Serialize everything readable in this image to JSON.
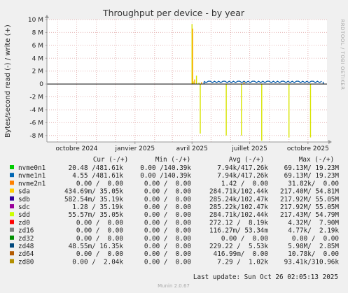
{
  "chart_data": {
    "type": "line",
    "title": "Throughput per device - by year",
    "ylabel": "Bytes/second read (-) / write (+)",
    "side_label": "RRDTOOL / TOBI OETIKER",
    "ylim": [
      -9000000,
      10000000
    ],
    "y_ticks": [
      {
        "value": 10000000,
        "label": "10 M"
      },
      {
        "value": 8000000,
        "label": "8 M"
      },
      {
        "value": 6000000,
        "label": "6 M"
      },
      {
        "value": 4000000,
        "label": "4 M"
      },
      {
        "value": 2000000,
        "label": "2 M"
      },
      {
        "value": 0,
        "label": "0"
      },
      {
        "value": -2000000,
        "label": "-2 M"
      },
      {
        "value": -4000000,
        "label": "-4 M"
      },
      {
        "value": -6000000,
        "label": "-6 M"
      },
      {
        "value": -8000000,
        "label": "-8 M"
      }
    ],
    "xlim": [
      "2024-08-15",
      "2025-10-31"
    ],
    "x_ticks": [
      {
        "value": "2024-10-01",
        "label": "octobre 2024"
      },
      {
        "value": "2025-01-01",
        "label": "janvier 2025"
      },
      {
        "value": "2025-04-01",
        "label": "avril 2025"
      },
      {
        "value": "2025-07-01",
        "label": "juillet 2025"
      },
      {
        "value": "2025-10-01",
        "label": "octobre 2025"
      }
    ],
    "series": [
      {
        "name": "sdd",
        "color": "#d7e400",
        "points": [
          [
            "2025-04-01",
            9300000
          ],
          [
            "2025-04-03",
            400000
          ],
          [
            "2025-04-08",
            1300000
          ],
          [
            "2025-04-12",
            200000
          ],
          [
            "2025-04-14",
            -7700000
          ],
          [
            "2025-05-25",
            -8000000
          ],
          [
            "2025-06-18",
            -8000000
          ],
          [
            "2025-07-20",
            -8800000
          ],
          [
            "2025-09-01",
            -8300000
          ],
          [
            "2025-10-05",
            -8300000
          ]
        ]
      },
      {
        "name": "sda",
        "color": "#ffa500",
        "points": [
          [
            "2025-04-02",
            8600000
          ],
          [
            "2025-04-05",
            700000
          ],
          [
            "2025-04-16",
            300000
          ],
          [
            "2025-06-22",
            500000
          ]
        ]
      },
      {
        "name": "sdb",
        "color": "#0057a8",
        "points": [
          [
            "2025-04-20",
            350000
          ],
          [
            "2025-10-25",
            350000
          ]
        ]
      }
    ]
  },
  "legend": {
    "headers": {
      "cur": "Cur (-/+)",
      "min": "Min (-/+)",
      "avg": "Avg (-/+)",
      "max": "Max (-/+)"
    },
    "rows": [
      {
        "name": "nvme0n1",
        "color": "#00cc00",
        "cur": "20.48 /481.61k",
        "min": "0.00 /140.39k",
        "avg": "7.94k/417.26k",
        "max": "69.13M/ 19.23M"
      },
      {
        "name": "nvme1n1",
        "color": "#0066b3",
        "cur": "4.55 /481.61k",
        "min": "0.00 /140.39k",
        "avg": "7.94k/417.26k",
        "max": "69.13M/ 19.23M"
      },
      {
        "name": "nvme2n1",
        "color": "#ff8000",
        "cur": "0.00 /  0.00",
        "min": "0.00 /  0.00",
        "avg": "1.42 /  0.00",
        "max": "31.82k/  0.00"
      },
      {
        "name": "sda",
        "color": "#ffcc00",
        "cur": "434.69m/ 35.05k",
        "min": "0.00 /  0.00",
        "avg": "284.71k/102.44k",
        "max": "217.40M/ 54.81M"
      },
      {
        "name": "sdb",
        "color": "#330099",
        "cur": "582.54m/ 35.19k",
        "min": "0.00 /  0.00",
        "avg": "285.24k/102.47k",
        "max": "217.92M/ 55.05M"
      },
      {
        "name": "sdc",
        "color": "#990099",
        "cur": "1.28 / 35.19k",
        "min": "0.00 /  0.00",
        "avg": "285.22k/102.47k",
        "max": "217.92M/ 55.05M"
      },
      {
        "name": "sdd",
        "color": "#ccff00",
        "cur": "55.57m/ 35.05k",
        "min": "0.00 /  0.00",
        "avg": "284.71k/102.44k",
        "max": "217.43M/ 54.79M"
      },
      {
        "name": "zd0",
        "color": "#ff0000",
        "cur": "0.00 /  0.00",
        "min": "0.00 /  0.00",
        "avg": "272.12 /  8.19k",
        "max": "4.32M/  7.90M"
      },
      {
        "name": "zd16",
        "color": "#808080",
        "cur": "0.00 /  0.00",
        "min": "0.00 /  0.00",
        "avg": "116.27m/ 53.34m",
        "max": "4.77k/  2.19k"
      },
      {
        "name": "zd32",
        "color": "#008f00",
        "cur": "0.00 /  0.00",
        "min": "0.00 /  0.00",
        "avg": "0.00 /  0.00",
        "max": "0.00 /  0.00"
      },
      {
        "name": "zd48",
        "color": "#00487d",
        "cur": "48.55m/ 16.35k",
        "min": "0.00 /  0.00",
        "avg": "229.22 /  5.53k",
        "max": "5.98M/  2.85M"
      },
      {
        "name": "zd64",
        "color": "#b35a00",
        "cur": "0.00 /  0.00",
        "min": "0.00 /  0.00",
        "avg": "416.99m/  0.00",
        "max": "10.78k/  0.00"
      },
      {
        "name": "zd80",
        "color": "#b38f00",
        "cur": "0.00 /  2.04k",
        "min": "0.00 /  0.00",
        "avg": "7.29 /  1.02k",
        "max": "93.41k/310.96k"
      }
    ]
  },
  "last_update": "Last update: Sun Oct 26 02:05:13 2025",
  "footer": "Munin 2.0.67"
}
